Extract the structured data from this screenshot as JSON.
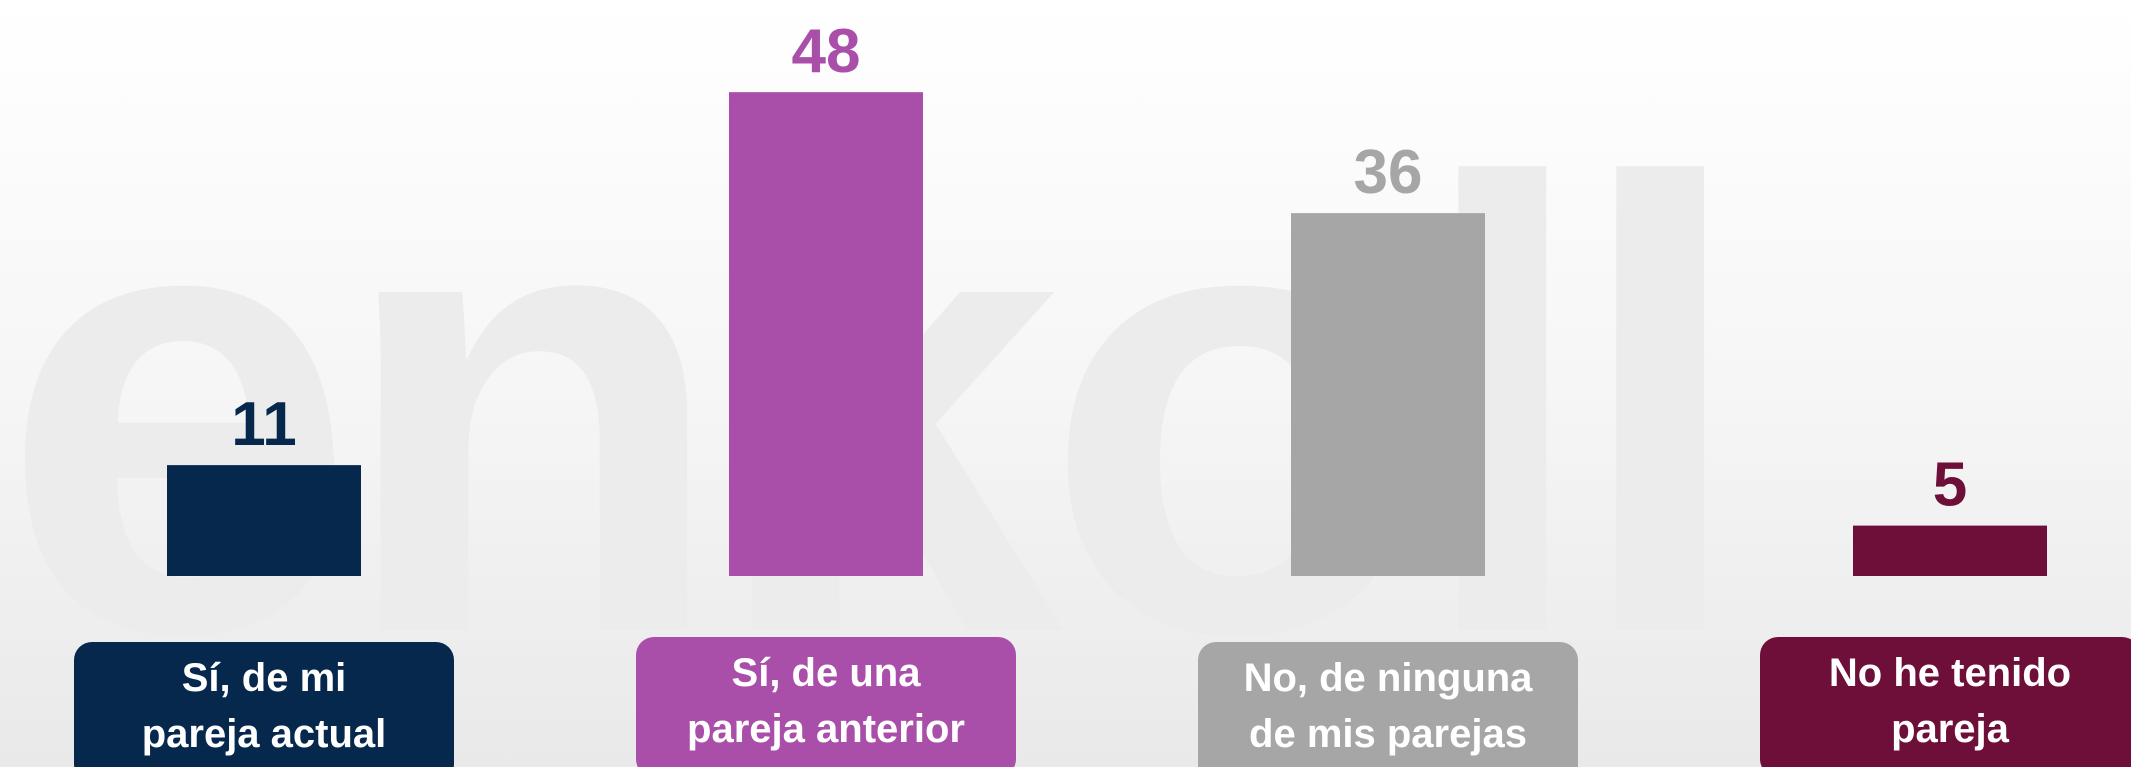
{
  "watermark": "enkoll",
  "chart_data": {
    "type": "bar",
    "categories": [
      "Sí, de mi\npareja actual",
      "Sí, de una\npareja anterior",
      "No, de ninguna\nde mis parejas",
      "No he tenido\npareja"
    ],
    "values": [
      11,
      48,
      36,
      5
    ],
    "colors": [
      "#06284d",
      "#a94fa9",
      "#a6a6a6",
      "#6d0f38"
    ]
  }
}
